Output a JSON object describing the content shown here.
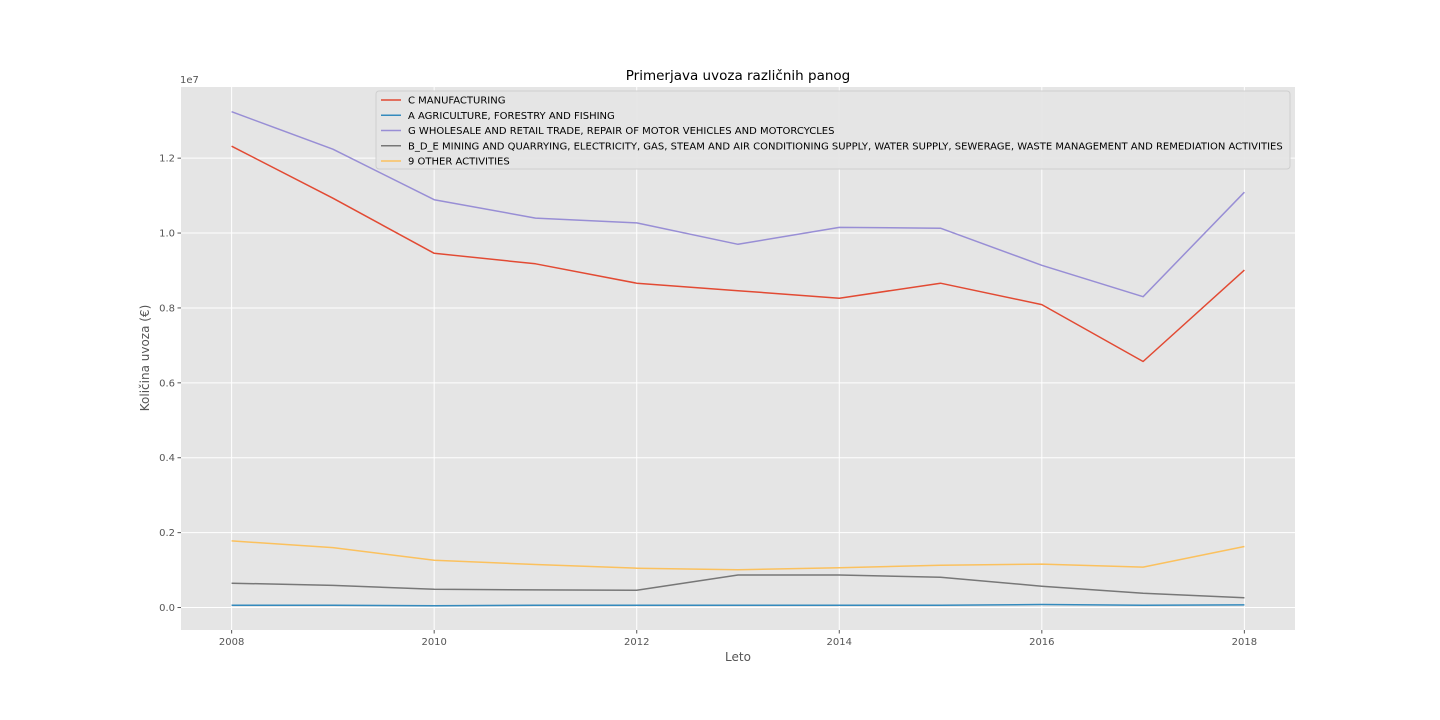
{
  "chart_data": {
    "type": "line",
    "title": "Primerjava uvoza različnih panog",
    "xlabel": "Leto",
    "ylabel": "Količina uvoza (€)",
    "y_offset_label": "1e7",
    "xlim": [
      2007.5,
      2018.5
    ],
    "ylim": [
      -0.06,
      1.39
    ],
    "x_ticks": [
      2008,
      2010,
      2012,
      2014,
      2016,
      2018
    ],
    "x_tick_labels": [
      "2008",
      "2010",
      "2012",
      "2014",
      "2016",
      "2018"
    ],
    "y_ticks": [
      0.0,
      0.2,
      0.4,
      0.6,
      0.8,
      1.0,
      1.2
    ],
    "y_tick_labels": [
      "0.0",
      "0.2",
      "0.4",
      "0.6",
      "0.8",
      "1.0",
      "1.2"
    ],
    "grid": true,
    "legend_position": "top",
    "x": [
      2008,
      2009,
      2010,
      2011,
      2012,
      2013,
      2014,
      2015,
      2016,
      2017,
      2018
    ],
    "series": [
      {
        "name": "C MANUFACTURING",
        "color": "#E24A33",
        "values": [
          1.232,
          1.093,
          0.946,
          0.918,
          0.866,
          0.846,
          0.826,
          0.866,
          0.809,
          0.657,
          0.901
        ]
      },
      {
        "name": "A AGRICULTURE, FORESTRY AND FISHING",
        "color": "#348ABD",
        "values": [
          0.006,
          0.006,
          0.005,
          0.006,
          0.006,
          0.006,
          0.006,
          0.006,
          0.008,
          0.006,
          0.007
        ]
      },
      {
        "name": "G WHOLESALE AND RETAIL TRADE, REPAIR OF MOTOR VEHICLES AND MOTORCYCLES",
        "color": "#988ED5",
        "values": [
          1.324,
          1.224,
          1.089,
          1.04,
          1.027,
          0.97,
          1.015,
          1.013,
          0.914,
          0.83,
          1.109
        ]
      },
      {
        "name": "B_D_E  MINING AND QUARRYING, ELECTRICITY, GAS, STEAM AND AIR CONDITIONING SUPPLY, WATER SUPPLY, SEWERAGE, WASTE MANAGEMENT AND REMEDIATION ACTIVITIES",
        "color": "#777777",
        "values": [
          0.065,
          0.059,
          0.049,
          0.047,
          0.046,
          0.087,
          0.087,
          0.081,
          0.057,
          0.038,
          0.026
        ]
      },
      {
        "name": "9 OTHER ACTIVITIES",
        "color": "#FBC15E",
        "values": [
          0.178,
          0.16,
          0.126,
          0.115,
          0.105,
          0.101,
          0.106,
          0.113,
          0.116,
          0.108,
          0.163
        ]
      }
    ]
  }
}
